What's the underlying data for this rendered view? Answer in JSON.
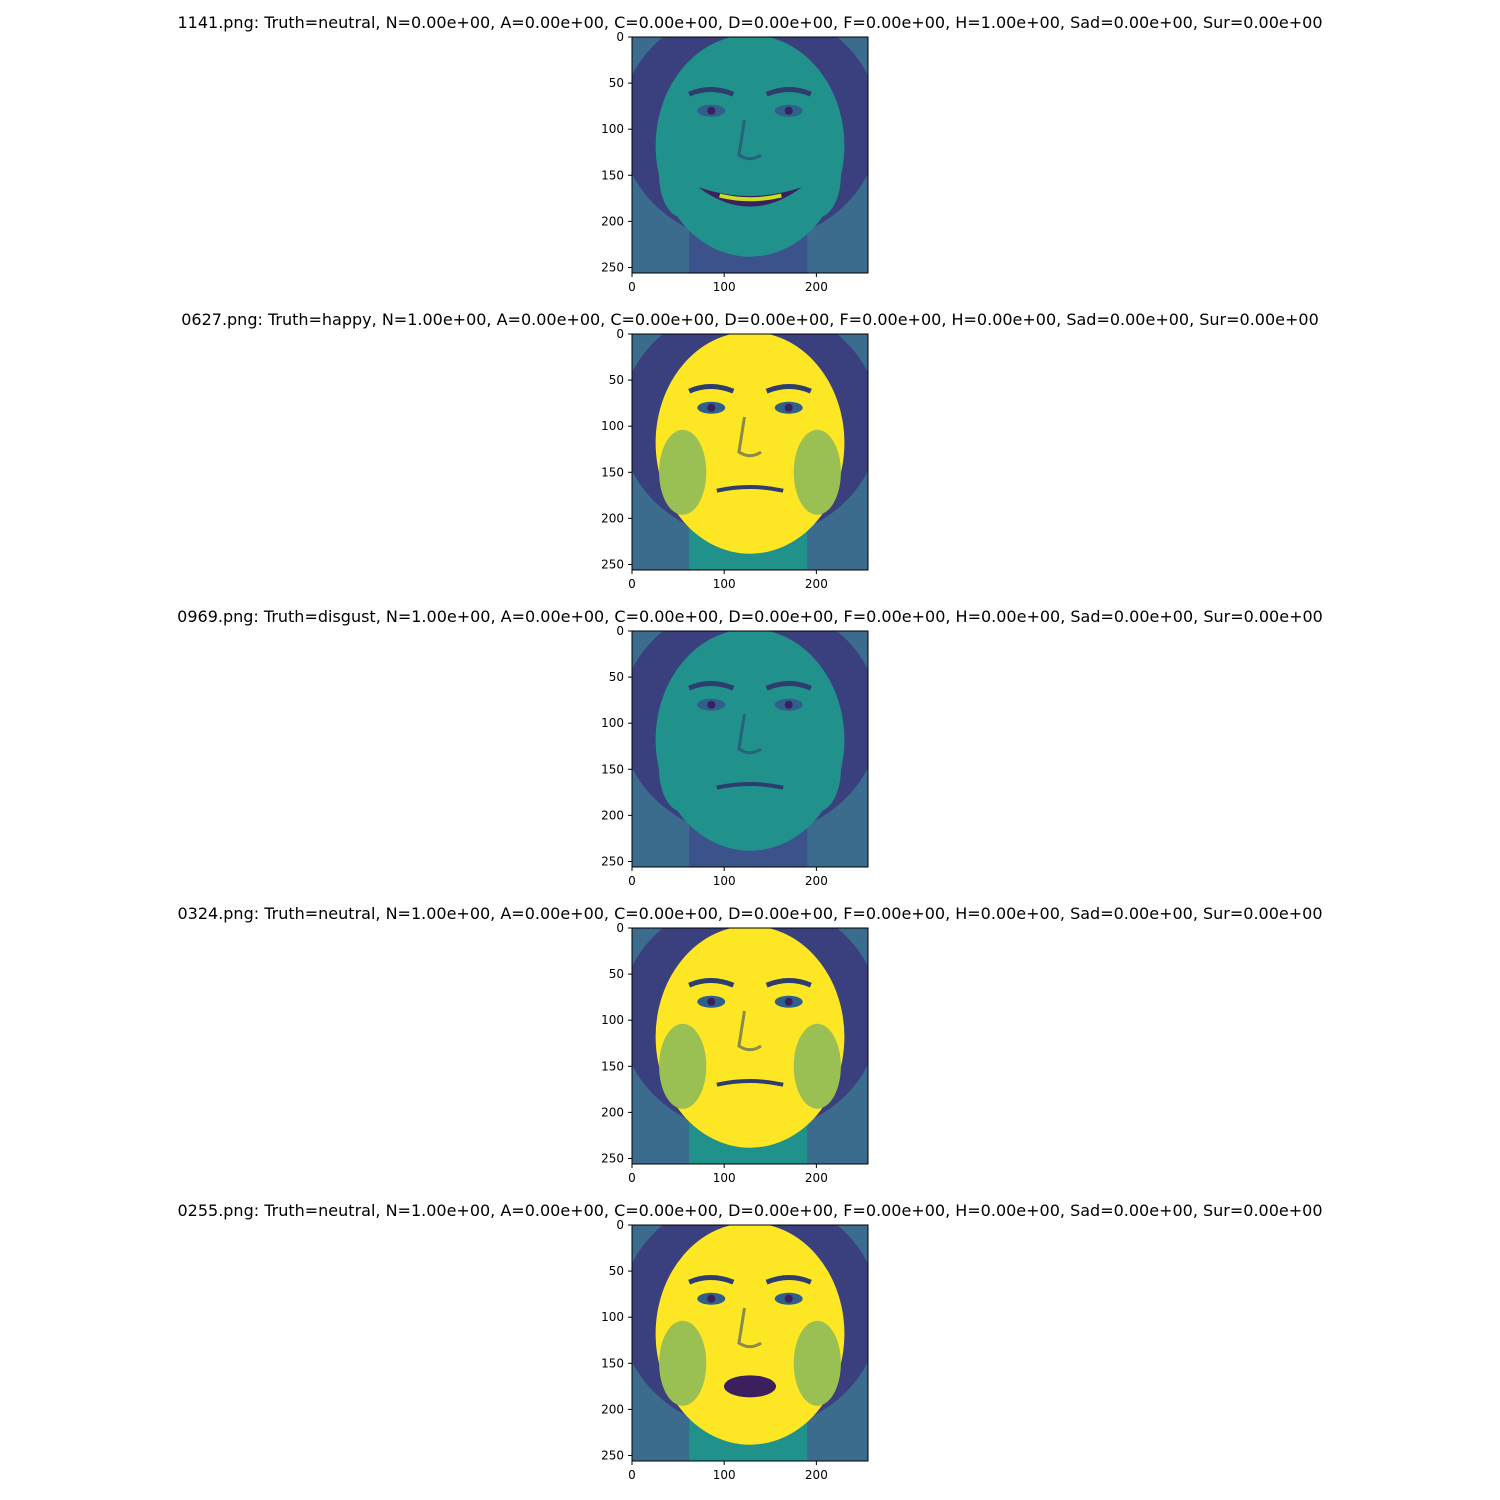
{
  "chart_data": [
    {
      "type": "heatmap",
      "title": "1141.png: Truth=neutral, N=0.00e+00, A=0.00e+00, C=0.00e+00, D=0.00e+00, F=0.00e+00, H=1.00e+00, Sad=0.00e+00, Sur=0.00e+00",
      "xlim": [
        0,
        256
      ],
      "ylim": [
        256,
        0
      ],
      "xticks": [
        0,
        100,
        200
      ],
      "yticks": [
        0,
        50,
        100,
        150,
        200,
        250
      ],
      "colormap": "viridis",
      "face": {
        "expression": "smile",
        "brightness": 0.62
      }
    },
    {
      "type": "heatmap",
      "title": "0627.png: Truth=happy, N=1.00e+00, A=0.00e+00, C=0.00e+00, D=0.00e+00, F=0.00e+00, H=0.00e+00, Sad=0.00e+00, Sur=0.00e+00",
      "xlim": [
        0,
        256
      ],
      "ylim": [
        256,
        0
      ],
      "xticks": [
        0,
        100,
        200
      ],
      "yticks": [
        0,
        50,
        100,
        150,
        200,
        250
      ],
      "colormap": "viridis",
      "face": {
        "expression": "neutral",
        "brightness": 0.95
      }
    },
    {
      "type": "heatmap",
      "title": "0969.png: Truth=disgust, N=1.00e+00, A=0.00e+00, C=0.00e+00, D=0.00e+00, F=0.00e+00, H=0.00e+00, Sad=0.00e+00, Sur=0.00e+00",
      "xlim": [
        0,
        256
      ],
      "ylim": [
        256,
        0
      ],
      "xticks": [
        0,
        100,
        200
      ],
      "yticks": [
        0,
        50,
        100,
        150,
        200,
        250
      ],
      "colormap": "viridis",
      "face": {
        "expression": "neutral",
        "brightness": 0.55
      }
    },
    {
      "type": "heatmap",
      "title": "0324.png: Truth=neutral, N=1.00e+00, A=0.00e+00, C=0.00e+00, D=0.00e+00, F=0.00e+00, H=0.00e+00, Sad=0.00e+00, Sur=0.00e+00",
      "xlim": [
        0,
        256
      ],
      "ylim": [
        256,
        0
      ],
      "xticks": [
        0,
        100,
        200
      ],
      "yticks": [
        0,
        50,
        100,
        150,
        200,
        250
      ],
      "colormap": "viridis",
      "face": {
        "expression": "neutral",
        "brightness": 0.9
      }
    },
    {
      "type": "heatmap",
      "title": "0255.png: Truth=neutral, N=1.00e+00, A=0.00e+00, C=0.00e+00, D=0.00e+00, F=0.00e+00, H=0.00e+00, Sad=0.00e+00, Sur=0.00e+00",
      "xlim": [
        0,
        256
      ],
      "ylim": [
        256,
        0
      ],
      "xticks": [
        0,
        100,
        200
      ],
      "yticks": [
        0,
        50,
        100,
        150,
        200,
        250
      ],
      "colormap": "viridis",
      "face": {
        "expression": "open-mouth",
        "brightness": 0.9
      }
    }
  ]
}
